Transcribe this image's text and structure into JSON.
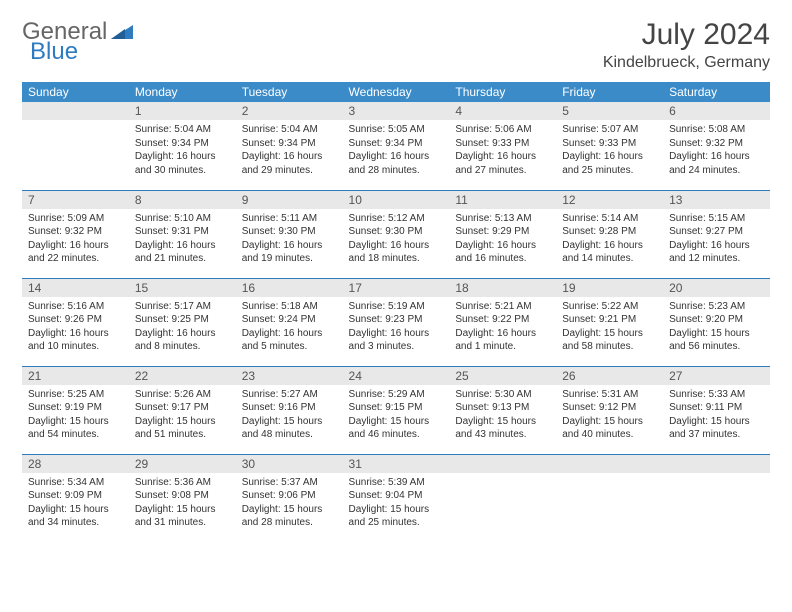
{
  "brand": {
    "general": "General",
    "blue": "Blue"
  },
  "title": "July 2024",
  "location": "Kindelbrueck, Germany",
  "colors": {
    "header_bg": "#3b8bc9",
    "header_text": "#ffffff",
    "daynum_bg": "#e8e8e8",
    "border": "#2f7bbf",
    "text": "#333333",
    "logo_blue": "#2f7bbf"
  },
  "weekdays": [
    "Sunday",
    "Monday",
    "Tuesday",
    "Wednesday",
    "Thursday",
    "Friday",
    "Saturday"
  ],
  "weeks": [
    [
      {
        "n": "",
        "sr": "",
        "ss": "",
        "dl": ""
      },
      {
        "n": "1",
        "sr": "Sunrise: 5:04 AM",
        "ss": "Sunset: 9:34 PM",
        "dl": "Daylight: 16 hours and 30 minutes."
      },
      {
        "n": "2",
        "sr": "Sunrise: 5:04 AM",
        "ss": "Sunset: 9:34 PM",
        "dl": "Daylight: 16 hours and 29 minutes."
      },
      {
        "n": "3",
        "sr": "Sunrise: 5:05 AM",
        "ss": "Sunset: 9:34 PM",
        "dl": "Daylight: 16 hours and 28 minutes."
      },
      {
        "n": "4",
        "sr": "Sunrise: 5:06 AM",
        "ss": "Sunset: 9:33 PM",
        "dl": "Daylight: 16 hours and 27 minutes."
      },
      {
        "n": "5",
        "sr": "Sunrise: 5:07 AM",
        "ss": "Sunset: 9:33 PM",
        "dl": "Daylight: 16 hours and 25 minutes."
      },
      {
        "n": "6",
        "sr": "Sunrise: 5:08 AM",
        "ss": "Sunset: 9:32 PM",
        "dl": "Daylight: 16 hours and 24 minutes."
      }
    ],
    [
      {
        "n": "7",
        "sr": "Sunrise: 5:09 AM",
        "ss": "Sunset: 9:32 PM",
        "dl": "Daylight: 16 hours and 22 minutes."
      },
      {
        "n": "8",
        "sr": "Sunrise: 5:10 AM",
        "ss": "Sunset: 9:31 PM",
        "dl": "Daylight: 16 hours and 21 minutes."
      },
      {
        "n": "9",
        "sr": "Sunrise: 5:11 AM",
        "ss": "Sunset: 9:30 PM",
        "dl": "Daylight: 16 hours and 19 minutes."
      },
      {
        "n": "10",
        "sr": "Sunrise: 5:12 AM",
        "ss": "Sunset: 9:30 PM",
        "dl": "Daylight: 16 hours and 18 minutes."
      },
      {
        "n": "11",
        "sr": "Sunrise: 5:13 AM",
        "ss": "Sunset: 9:29 PM",
        "dl": "Daylight: 16 hours and 16 minutes."
      },
      {
        "n": "12",
        "sr": "Sunrise: 5:14 AM",
        "ss": "Sunset: 9:28 PM",
        "dl": "Daylight: 16 hours and 14 minutes."
      },
      {
        "n": "13",
        "sr": "Sunrise: 5:15 AM",
        "ss": "Sunset: 9:27 PM",
        "dl": "Daylight: 16 hours and 12 minutes."
      }
    ],
    [
      {
        "n": "14",
        "sr": "Sunrise: 5:16 AM",
        "ss": "Sunset: 9:26 PM",
        "dl": "Daylight: 16 hours and 10 minutes."
      },
      {
        "n": "15",
        "sr": "Sunrise: 5:17 AM",
        "ss": "Sunset: 9:25 PM",
        "dl": "Daylight: 16 hours and 8 minutes."
      },
      {
        "n": "16",
        "sr": "Sunrise: 5:18 AM",
        "ss": "Sunset: 9:24 PM",
        "dl": "Daylight: 16 hours and 5 minutes."
      },
      {
        "n": "17",
        "sr": "Sunrise: 5:19 AM",
        "ss": "Sunset: 9:23 PM",
        "dl": "Daylight: 16 hours and 3 minutes."
      },
      {
        "n": "18",
        "sr": "Sunrise: 5:21 AM",
        "ss": "Sunset: 9:22 PM",
        "dl": "Daylight: 16 hours and 1 minute."
      },
      {
        "n": "19",
        "sr": "Sunrise: 5:22 AM",
        "ss": "Sunset: 9:21 PM",
        "dl": "Daylight: 15 hours and 58 minutes."
      },
      {
        "n": "20",
        "sr": "Sunrise: 5:23 AM",
        "ss": "Sunset: 9:20 PM",
        "dl": "Daylight: 15 hours and 56 minutes."
      }
    ],
    [
      {
        "n": "21",
        "sr": "Sunrise: 5:25 AM",
        "ss": "Sunset: 9:19 PM",
        "dl": "Daylight: 15 hours and 54 minutes."
      },
      {
        "n": "22",
        "sr": "Sunrise: 5:26 AM",
        "ss": "Sunset: 9:17 PM",
        "dl": "Daylight: 15 hours and 51 minutes."
      },
      {
        "n": "23",
        "sr": "Sunrise: 5:27 AM",
        "ss": "Sunset: 9:16 PM",
        "dl": "Daylight: 15 hours and 48 minutes."
      },
      {
        "n": "24",
        "sr": "Sunrise: 5:29 AM",
        "ss": "Sunset: 9:15 PM",
        "dl": "Daylight: 15 hours and 46 minutes."
      },
      {
        "n": "25",
        "sr": "Sunrise: 5:30 AM",
        "ss": "Sunset: 9:13 PM",
        "dl": "Daylight: 15 hours and 43 minutes."
      },
      {
        "n": "26",
        "sr": "Sunrise: 5:31 AM",
        "ss": "Sunset: 9:12 PM",
        "dl": "Daylight: 15 hours and 40 minutes."
      },
      {
        "n": "27",
        "sr": "Sunrise: 5:33 AM",
        "ss": "Sunset: 9:11 PM",
        "dl": "Daylight: 15 hours and 37 minutes."
      }
    ],
    [
      {
        "n": "28",
        "sr": "Sunrise: 5:34 AM",
        "ss": "Sunset: 9:09 PM",
        "dl": "Daylight: 15 hours and 34 minutes."
      },
      {
        "n": "29",
        "sr": "Sunrise: 5:36 AM",
        "ss": "Sunset: 9:08 PM",
        "dl": "Daylight: 15 hours and 31 minutes."
      },
      {
        "n": "30",
        "sr": "Sunrise: 5:37 AM",
        "ss": "Sunset: 9:06 PM",
        "dl": "Daylight: 15 hours and 28 minutes."
      },
      {
        "n": "31",
        "sr": "Sunrise: 5:39 AM",
        "ss": "Sunset: 9:04 PM",
        "dl": "Daylight: 15 hours and 25 minutes."
      },
      {
        "n": "",
        "sr": "",
        "ss": "",
        "dl": ""
      },
      {
        "n": "",
        "sr": "",
        "ss": "",
        "dl": ""
      },
      {
        "n": "",
        "sr": "",
        "ss": "",
        "dl": ""
      }
    ]
  ]
}
